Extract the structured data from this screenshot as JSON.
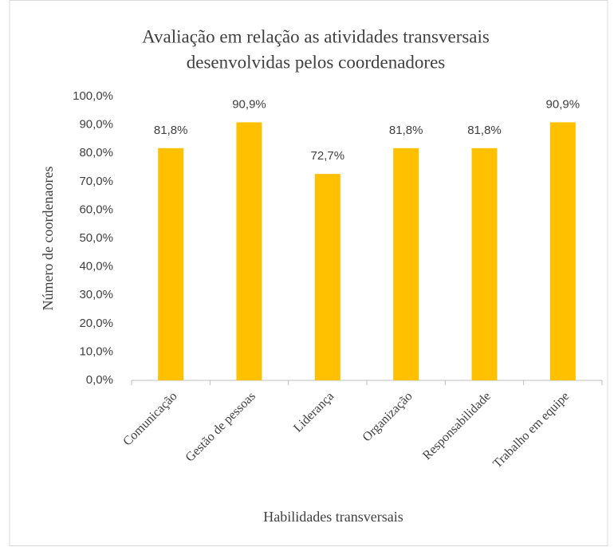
{
  "chart_data": {
    "type": "bar",
    "title": [
      "Avaliação  em relação as atividades  transversais",
      "desenvolvidas  pelos coordenadores"
    ],
    "x_label": "Habilidades transversais",
    "y_label": "Número  de coordenaores",
    "categories": [
      "Comunicação",
      "Gestão de pessoas",
      "Liderança",
      "Organização",
      "Responsabilidade",
      "Trabalho em equipe"
    ],
    "values": [
      81.8,
      90.9,
      72.7,
      81.8,
      81.8,
      90.9
    ],
    "value_labels": [
      "81,8%",
      "90,9%",
      "72,7%",
      "81,8%",
      "81,8%",
      "90,9%"
    ],
    "color": "#ffc000",
    "ylim": [
      0,
      100
    ],
    "yticks": [
      {
        "value": 0,
        "label": "0,0%"
      },
      {
        "value": 10,
        "label": "10,0%"
      },
      {
        "value": 20,
        "label": "20,0%"
      },
      {
        "value": 30,
        "label": "30,0%"
      },
      {
        "value": 40,
        "label": "40,0%"
      },
      {
        "value": 50,
        "label": "50,0%"
      },
      {
        "value": 60,
        "label": "60,0%"
      },
      {
        "value": 70,
        "label": "70,0%"
      },
      {
        "value": 80,
        "label": "80,0%"
      },
      {
        "value": 90,
        "label": "90,0%"
      },
      {
        "value": 100,
        "label": "100,0%"
      }
    ],
    "grid": false
  }
}
